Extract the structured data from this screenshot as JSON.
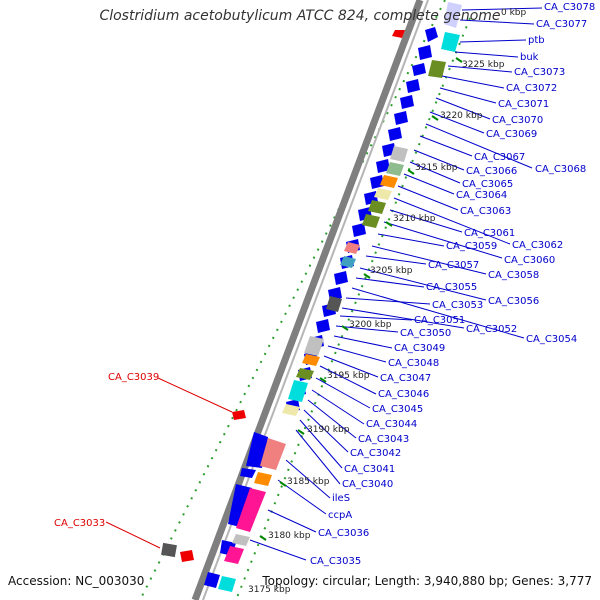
{
  "title": "Clostridium acetobutylicum ATCC 824, complete genome",
  "footer": {
    "accession": "Accession: NC_003030",
    "topology": "Topology: circular; Length: 3,940,880 bp; Genes: 3,777"
  },
  "colors": {
    "backbone": "#808080",
    "cds": "#0000ee",
    "rna": "#ee0000",
    "label_blue": "#0000cc",
    "label_red": "#dd0000",
    "tick_green": "#008800"
  },
  "tick_labels": [
    "0 kbp",
    "3225 kbp",
    "3220 kbp",
    "3215 kbp",
    "3210 kbp",
    "3205 kbp",
    "3200 kbp",
    "3195 kbp",
    "3190 kbp",
    "3185 kbp",
    "3180 kbp",
    "3175 kbp"
  ],
  "gene_labels_right": [
    "CA_C3078",
    "CA_C3077",
    "ptb",
    "buk",
    "CA_C3073",
    "CA_C3072",
    "CA_C3071",
    "CA_C3070",
    "CA_C3069",
    "CA_C3068",
    "CA_C3067",
    "CA_C3066",
    "CA_C3065",
    "CA_C3064",
    "CA_C3063",
    "CA_C3062",
    "CA_C3061",
    "CA_C3060",
    "CA_C3059",
    "CA_C3058",
    "CA_C3057",
    "CA_C3056",
    "CA_C3055",
    "CA_C3054",
    "CA_C3053",
    "CA_C3052",
    "CA_C3051",
    "CA_C3050",
    "CA_C3049",
    "CA_C3048",
    "CA_C3047",
    "CA_C3046",
    "CA_C3045",
    "CA_C3044",
    "CA_C3043",
    "CA_C3042",
    "CA_C3041",
    "CA_C3040",
    "ileS",
    "ccpA",
    "CA_C3036",
    "CA_C3035"
  ],
  "gene_labels_left": [
    "CA_C3039",
    "CA_C3033"
  ]
}
